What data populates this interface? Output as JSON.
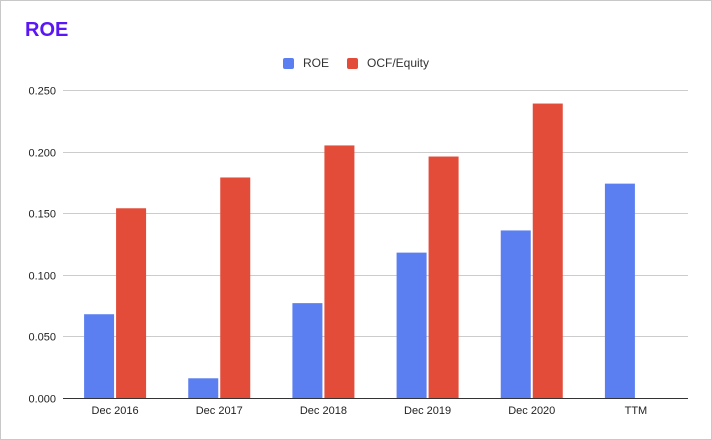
{
  "chart_data": {
    "type": "bar",
    "title": "ROE",
    "categories": [
      "Dec 2016",
      "Dec 2017",
      "Dec 2018",
      "Dec 2019",
      "Dec 2020",
      "TTM"
    ],
    "series": [
      {
        "name": "ROE",
        "color": "#5b7ff0",
        "values": [
          0.068,
          0.016,
          0.077,
          0.118,
          0.136,
          0.174
        ]
      },
      {
        "name": "OCF/Equity",
        "color": "#e24c38",
        "values": [
          0.154,
          0.179,
          0.205,
          0.196,
          0.239,
          null
        ]
      }
    ],
    "yticks": [
      "0.000",
      "0.050",
      "0.100",
      "0.150",
      "0.200",
      "0.250"
    ],
    "ylim": [
      0,
      0.25
    ],
    "grid": true,
    "legend_position": "top"
  }
}
